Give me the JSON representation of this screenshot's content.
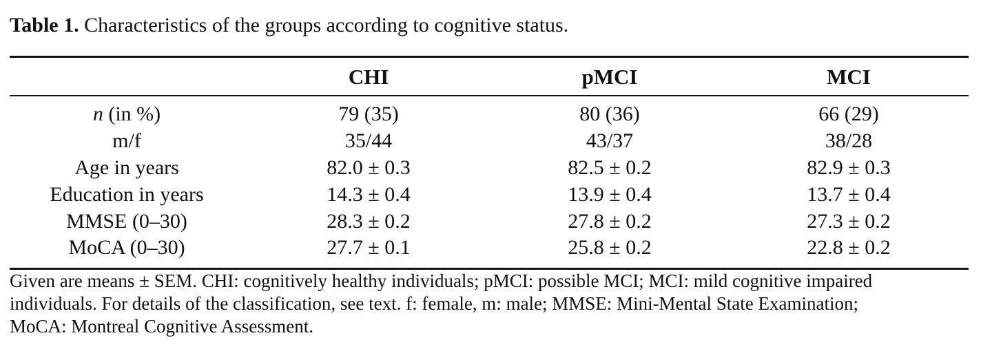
{
  "caption": {
    "label": "Table 1.",
    "text": "Characteristics of the groups according to cognitive status."
  },
  "table": {
    "headers": [
      "",
      "CHI",
      "pMCI",
      "MCI"
    ],
    "rows": [
      {
        "label_italic": "n",
        "label_rest": " (in %)",
        "values": [
          "79 (35)",
          "80 (36)",
          "66 (29)"
        ]
      },
      {
        "label": "m/f",
        "values": [
          "35/44",
          "43/37",
          "38/28"
        ]
      },
      {
        "label": "Age in years",
        "values": [
          "82.0 ± 0.3",
          "82.5 ± 0.2",
          "82.9 ± 0.3"
        ]
      },
      {
        "label": "Education in years",
        "values": [
          "14.3 ± 0.4",
          "13.9 ± 0.4",
          "13.7 ± 0.4"
        ]
      },
      {
        "label": "MMSE (0–30)",
        "values": [
          "28.3 ± 0.2",
          "27.8 ± 0.2",
          "27.3 ± 0.2"
        ]
      },
      {
        "label": "MoCA (0–30)",
        "values": [
          "27.7 ± 0.1",
          "25.8 ± 0.2",
          "22.8 ± 0.2"
        ]
      }
    ]
  },
  "footnote": {
    "lines": [
      "Given are means ± SEM. CHI: cognitively healthy individuals; pMCI: possible MCI; MCI: mild cognitive impaired",
      "individuals. For details of the classification, see text. f: female, m: male; MMSE: Mini-Mental State Examination;",
      "MoCA: Montreal Cognitive Assessment."
    ]
  }
}
